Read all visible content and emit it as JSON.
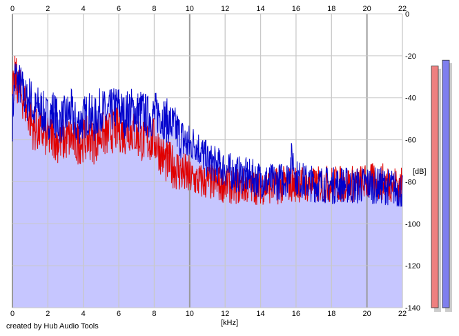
{
  "credit_text": "created by Hub Audio Tools",
  "x_unit": "[kHz]",
  "y_unit": "[dB]",
  "colors": {
    "background": "#ffffff",
    "plot_fill": "#c6c6ff",
    "grid_major": "#9a9a9a",
    "grid_minor": "#c8c8c8",
    "series_blue": "#0000cc",
    "series_red": "#e00000",
    "level_left": "#ee7f7f",
    "level_right": "#7f7fee"
  },
  "level_meters": [
    {
      "name": "left-channel-level-meter",
      "db": -12.4,
      "color": "#ee7f7f"
    },
    {
      "name": "right-channel-level-meter",
      "db": -9.6,
      "color": "#7f7fee"
    }
  ],
  "chart_data": {
    "type": "line",
    "title": "",
    "xlabel": "[kHz]",
    "ylabel": "[dB]",
    "xlim": [
      0,
      22
    ],
    "ylim": [
      -140,
      0
    ],
    "x_ticks": [
      "0",
      "2",
      "4",
      "6",
      "8",
      "10",
      "12",
      "14",
      "16",
      "18",
      "20",
      "22"
    ],
    "y_ticks": [
      "0",
      "-20",
      "-40",
      "-60",
      "-80",
      "-100",
      "-120",
      "-140"
    ],
    "grid": true,
    "series": [
      {
        "name": "",
        "color": "#0000cc",
        "x": [
          0,
          0.15,
          0.3,
          0.5,
          0.8,
          1.0,
          1.2,
          1.5,
          1.8,
          2.0,
          2.3,
          2.6,
          3.0,
          3.3,
          3.6,
          4.0,
          4.3,
          4.6,
          5.0,
          5.3,
          5.6,
          6.0,
          6.3,
          6.6,
          7.0,
          7.3,
          7.6,
          8.0,
          8.3,
          8.6,
          9.0,
          9.3,
          9.6,
          10.0,
          10.3,
          10.6,
          11.0,
          11.5,
          12.0,
          12.5,
          13.0,
          13.5,
          14.0,
          14.5,
          15.0,
          15.5,
          15.8,
          16.0,
          16.5,
          17.0,
          17.5,
          18.0,
          18.5,
          19.0,
          19.5,
          20.0,
          20.5,
          21.0,
          21.5,
          22.0
        ],
        "y": [
          -50,
          -29,
          -32,
          -35,
          -42,
          -39,
          -47,
          -44,
          -48,
          -50,
          -46,
          -52,
          -49,
          -46,
          -53,
          -50,
          -47,
          -51,
          -45,
          -48,
          -46,
          -44,
          -49,
          -45,
          -47,
          -46,
          -49,
          -48,
          -47,
          -50,
          -53,
          -56,
          -60,
          -63,
          -61,
          -65,
          -70,
          -72,
          -74,
          -76,
          -77,
          -78,
          -79,
          -80,
          -80,
          -78,
          -68,
          -78,
          -80,
          -81,
          -81,
          -82,
          -81,
          -82,
          -82,
          -81,
          -82,
          -82,
          -83,
          -84
        ]
      },
      {
        "name": "",
        "color": "#e00000",
        "x": [
          0,
          0.15,
          0.3,
          0.5,
          0.8,
          1.0,
          1.2,
          1.5,
          1.8,
          2.0,
          2.3,
          2.6,
          3.0,
          3.3,
          3.6,
          4.0,
          4.3,
          4.6,
          5.0,
          5.3,
          5.6,
          6.0,
          6.3,
          6.6,
          7.0,
          7.3,
          7.6,
          8.0,
          8.3,
          8.6,
          9.0,
          9.3,
          9.6,
          10.0,
          10.3,
          10.6,
          11.0,
          11.5,
          12.0,
          12.5,
          13.0,
          13.5,
          14.0,
          14.5,
          15.0,
          15.5,
          16.0,
          16.5,
          17.0,
          17.5,
          18.0,
          18.5,
          19.0,
          19.5,
          20.0,
          20.5,
          21.0,
          21.5,
          22.0
        ],
        "y": [
          -40,
          -30,
          -33,
          -38,
          -45,
          -50,
          -55,
          -56,
          -57,
          -60,
          -58,
          -61,
          -60,
          -59,
          -62,
          -60,
          -59,
          -61,
          -57,
          -58,
          -56,
          -55,
          -57,
          -55,
          -58,
          -60,
          -61,
          -60,
          -65,
          -70,
          -72,
          -74,
          -76,
          -78,
          -79,
          -80,
          -80,
          -81,
          -81,
          -82,
          -82,
          -82,
          -82,
          -82,
          -82,
          -81,
          -81,
          -81,
          -82,
          -81,
          -81,
          -81,
          -81,
          -81,
          -80,
          -80,
          -80,
          -81,
          -82
        ]
      }
    ]
  }
}
